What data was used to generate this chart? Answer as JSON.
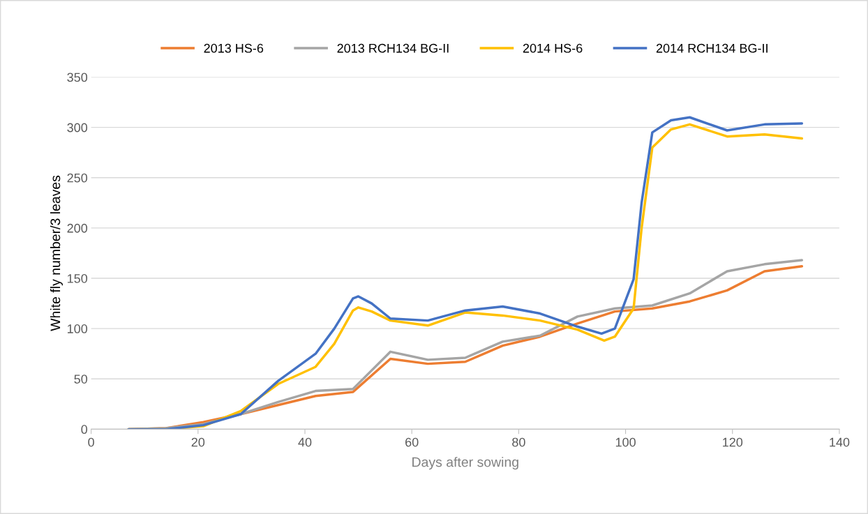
{
  "chart_data": {
    "type": "line",
    "xlabel": "Days after sowing",
    "ylabel": "White fly number/3 leaves",
    "x": [
      7,
      14,
      21,
      28,
      35,
      42,
      49,
      56,
      63,
      70,
      77,
      84,
      91,
      98,
      105,
      112,
      119,
      126,
      133
    ],
    "series": [
      {
        "name": "2013 HS-6",
        "color": "#ed7d31",
        "values": [
          0,
          1,
          7,
          15,
          24,
          33,
          37,
          70,
          65,
          67,
          83,
          92,
          105,
          117,
          120,
          127,
          138,
          157,
          162
        ]
      },
      {
        "name": "2013 RCH134 BG-II",
        "color": "#a5a5a5",
        "values": [
          0,
          1,
          5,
          15,
          27,
          38,
          40,
          77,
          69,
          71,
          87,
          93,
          112,
          120,
          123,
          135,
          157,
          164,
          168
        ]
      },
      {
        "name": "2014 HS-6",
        "color": "#ffc000",
        "x": [
          7,
          14,
          21,
          28,
          35,
          42,
          45.5,
          49,
          50,
          52.5,
          56,
          63,
          70,
          77,
          84,
          91,
          96,
          98,
          101.5,
          103,
          105,
          108.5,
          112,
          119,
          126,
          133
        ],
        "values": [
          0,
          0,
          3,
          18,
          45,
          62,
          85,
          118,
          121,
          117,
          108,
          103,
          116,
          113,
          108,
          99,
          88,
          92,
          120,
          200,
          280,
          298,
          303,
          291,
          293,
          289
        ]
      },
      {
        "name": "2014 RCH134 BG-II",
        "color": "#4472c4",
        "x": [
          7,
          14,
          21,
          28,
          35,
          42,
          45.5,
          49,
          50,
          52.5,
          56,
          63,
          70,
          77,
          84,
          91,
          95.5,
          98,
          101.5,
          103,
          105,
          108.5,
          112,
          119,
          126,
          133
        ],
        "values": [
          0,
          0,
          4,
          15,
          48,
          75,
          100,
          130,
          132,
          125,
          110,
          108,
          118,
          122,
          115,
          102,
          95,
          100,
          149,
          225,
          295,
          307,
          310,
          297,
          303,
          304
        ]
      }
    ],
    "xlim": [
      0,
      140
    ],
    "xticks": [
      0,
      20,
      40,
      60,
      80,
      100,
      120,
      140
    ],
    "ylim": [
      0,
      350
    ],
    "yticks": [
      0,
      50,
      100,
      150,
      200,
      250,
      300,
      350
    ],
    "grid": "y",
    "legend": "top",
    "marker": "none",
    "line_style": "solid"
  }
}
